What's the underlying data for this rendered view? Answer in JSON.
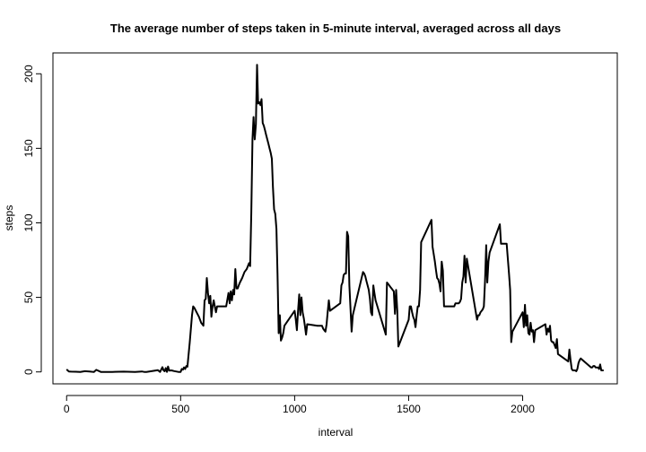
{
  "chart_data": {
    "type": "line",
    "title": "The average number of steps taken in 5-minute interval, averaged across all days",
    "xlabel": "interval",
    "ylabel": "steps",
    "xlim": [
      -60,
      2415
    ],
    "ylim": [
      -8,
      214
    ],
    "x_ticks": [
      0,
      500,
      1000,
      1500,
      2000
    ],
    "y_ticks": [
      0,
      50,
      100,
      150,
      200
    ],
    "grid": false,
    "legend": "none",
    "colors": {
      "line": "#000000",
      "frame": "#000000",
      "background": "#ffffff"
    },
    "series": [
      {
        "x": [
          0,
          10,
          20,
          40,
          60,
          80,
          100,
          110,
          120,
          130,
          150,
          200,
          250,
          300,
          330,
          340,
          350,
          400,
          410,
          420,
          425,
          430,
          435,
          440,
          445,
          450,
          460,
          470,
          480,
          490,
          500,
          505,
          510,
          515,
          520,
          525,
          530,
          540,
          550,
          555,
          560,
          570,
          580,
          590,
          600,
          605,
          610,
          615,
          620,
          625,
          630,
          635,
          640,
          645,
          650,
          655,
          660,
          670,
          680,
          690,
          700,
          710,
          715,
          720,
          725,
          730,
          735,
          740,
          745,
          750,
          755,
          760,
          770,
          780,
          790,
          800,
          805,
          810,
          815,
          820,
          825,
          830,
          835,
          840,
          845,
          850,
          855,
          860,
          865,
          870,
          875,
          880,
          885,
          890,
          895,
          900,
          905,
          910,
          915,
          920,
          925,
          930,
          935,
          940,
          945,
          950,
          955,
          1000,
          1005,
          1010,
          1015,
          1020,
          1025,
          1030,
          1035,
          1040,
          1045,
          1050,
          1055,
          1100,
          1105,
          1110,
          1115,
          1120,
          1125,
          1130,
          1135,
          1140,
          1145,
          1150,
          1155,
          1200,
          1205,
          1210,
          1215,
          1220,
          1225,
          1230,
          1235,
          1240,
          1245,
          1250,
          1255,
          1300,
          1305,
          1310,
          1315,
          1320,
          1325,
          1330,
          1335,
          1340,
          1345,
          1350,
          1355,
          1400,
          1405,
          1410,
          1415,
          1420,
          1425,
          1430,
          1435,
          1440,
          1445,
          1450,
          1455,
          1500,
          1505,
          1510,
          1515,
          1520,
          1525,
          1530,
          1535,
          1540,
          1545,
          1550,
          1555,
          1600,
          1605,
          1610,
          1615,
          1620,
          1625,
          1630,
          1635,
          1640,
          1645,
          1650,
          1655,
          1700,
          1705,
          1710,
          1715,
          1720,
          1725,
          1730,
          1735,
          1740,
          1745,
          1750,
          1755,
          1800,
          1805,
          1810,
          1815,
          1820,
          1825,
          1830,
          1835,
          1840,
          1845,
          1850,
          1855,
          1900,
          1905,
          1910,
          1915,
          1920,
          1925,
          1930,
          1935,
          1940,
          1945,
          1950,
          1955,
          2000,
          2005,
          2010,
          2015,
          2020,
          2025,
          2030,
          2035,
          2040,
          2045,
          2050,
          2055,
          2100,
          2105,
          2110,
          2115,
          2120,
          2125,
          2130,
          2135,
          2140,
          2145,
          2150,
          2155,
          2200,
          2205,
          2210,
          2215,
          2220,
          2225,
          2230,
          2235,
          2240,
          2245,
          2250,
          2255,
          2300,
          2305,
          2310,
          2315,
          2320,
          2325,
          2330,
          2335,
          2340,
          2345,
          2350,
          2355
        ],
        "y": [
          1.7,
          0.3,
          0.2,
          0.1,
          0.0,
          0.5,
          0.3,
          0.1,
          0.0,
          1.4,
          0.0,
          0.0,
          0.2,
          0.0,
          0.3,
          0.0,
          0.0,
          1.2,
          0.0,
          3.2,
          1.0,
          0.4,
          2.6,
          0.0,
          3.6,
          0.9,
          1.0,
          0.6,
          0.3,
          0.0,
          0.0,
          2.0,
          1.5,
          3.0,
          2.0,
          4.0,
          3.5,
          20.0,
          38.0,
          44.0,
          43.0,
          40.0,
          37.0,
          33.0,
          31.0,
          48.0,
          49.0,
          63.0,
          53.0,
          46.0,
          51.0,
          37.0,
          44.0,
          48.0,
          44.0,
          40.0,
          44.0,
          44.0,
          44.0,
          44.0,
          44.0,
          53.0,
          46.0,
          54.0,
          48.0,
          55.0,
          52.0,
          69.0,
          56.0,
          56.0,
          58.0,
          60.0,
          63.0,
          67.0,
          69.0,
          73.0,
          71.0,
          107.0,
          156.0,
          171.0,
          156.0,
          166.0,
          206.0,
          180.0,
          181.0,
          179.0,
          183.0,
          167.0,
          165.0,
          162.0,
          159.0,
          156.0,
          153.0,
          150.0,
          147.0,
          143.0,
          124.0,
          109.0,
          106.0,
          96.0,
          66.0,
          26.0,
          38.0,
          21.0,
          23.0,
          26.0,
          31.0,
          41.0,
          35.0,
          28.0,
          41.0,
          52.0,
          38.0,
          50.0,
          40.0,
          36.0,
          31.0,
          25.0,
          32.0,
          31.0,
          31.0,
          31.0,
          31.0,
          31.0,
          29.0,
          28.0,
          27.0,
          32.0,
          40.0,
          48.0,
          41.0,
          46.0,
          58.0,
          60.0,
          65.0,
          66.0,
          66.0,
          94.0,
          91.0,
          58.0,
          42.0,
          27.0,
          38.0,
          67.0,
          66.0,
          64.0,
          61.0,
          58.0,
          55.0,
          49.0,
          40.0,
          38.0,
          58.0,
          53.0,
          48.0,
          25.0,
          60.0,
          59.0,
          58.0,
          57.0,
          56.0,
          55.0,
          54.0,
          39.0,
          55.0,
          41.0,
          17.0,
          35.0,
          44.0,
          44.0,
          40.0,
          37.0,
          35.0,
          30.0,
          38.0,
          44.0,
          44.0,
          55.0,
          87.0,
          102.0,
          84.0,
          79.0,
          74.0,
          68.0,
          63.0,
          62.0,
          59.0,
          54.0,
          74.0,
          68.0,
          44.0,
          44.0,
          46.0,
          46.0,
          46.0,
          46.0,
          47.0,
          49.0,
          60.0,
          64.0,
          78.0,
          60.0,
          76.0,
          35.0,
          38.0,
          38.0,
          40.0,
          41.0,
          42.0,
          44.0,
          61.0,
          85.0,
          60.0,
          74.0,
          80.0,
          99.0,
          86.0,
          86.0,
          86.0,
          86.0,
          86.0,
          86.0,
          76.0,
          66.0,
          55.0,
          20.0,
          27.0,
          40.0,
          30.0,
          45.0,
          31.0,
          38.0,
          26.0,
          25.0,
          33.0,
          27.0,
          28.0,
          20.0,
          28.0,
          32.0,
          25.0,
          29.0,
          27.0,
          31.0,
          21.0,
          20.0,
          20.0,
          18.0,
          16.0,
          22.0,
          12.0,
          7.0,
          15.0,
          8.0,
          2.0,
          1.0,
          1.0,
          1.0,
          0.5,
          2.0,
          6.0,
          8.0,
          9.0,
          3.0,
          3.0,
          4.0,
          4.0,
          3.0,
          3.0,
          3.0,
          2.0,
          5.0,
          1.0,
          1.0,
          1.0
        ]
      }
    ]
  }
}
